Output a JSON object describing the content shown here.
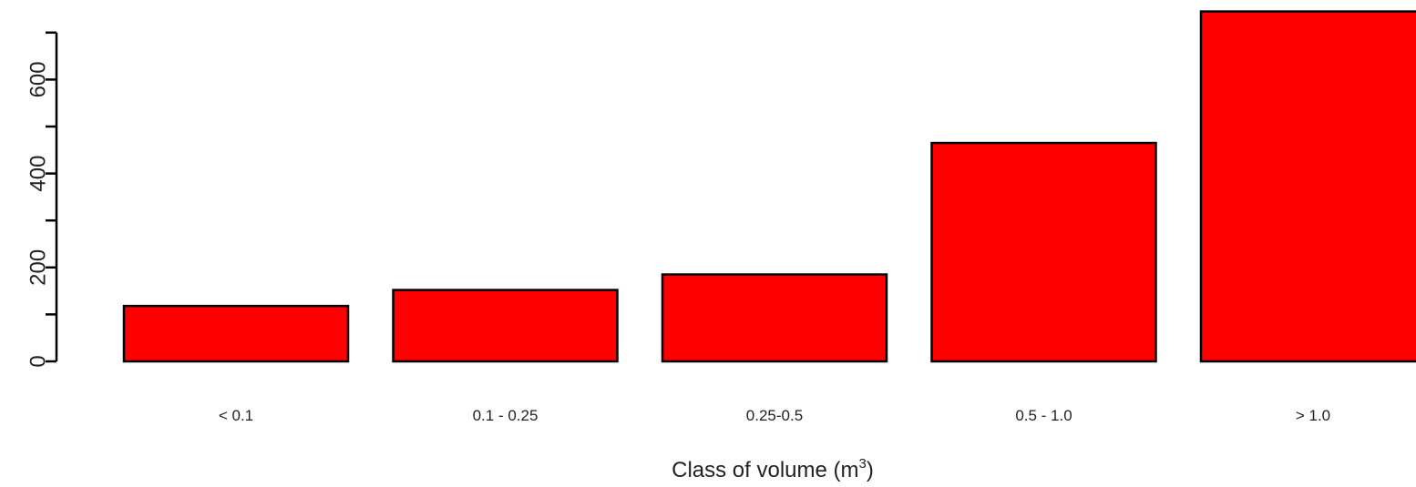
{
  "chart_data": {
    "type": "bar",
    "categories": [
      "< 0.1",
      "0.1 - 0.25",
      "0.25-0.5",
      "0.5 - 1.0",
      "> 1.0"
    ],
    "values": [
      118,
      152,
      185,
      465,
      745
    ],
    "xlabel": "Class of volume (m",
    "xlabel_sup": "3",
    "xlabel_close": ")",
    "ylabel": "",
    "ylim": [
      0,
      745
    ],
    "yticks": [
      0,
      200,
      400,
      600
    ],
    "yticks_minor": [
      100,
      300,
      500,
      700
    ],
    "grid": false,
    "bar_color": "#ff0000",
    "edge_color": "#000000"
  }
}
